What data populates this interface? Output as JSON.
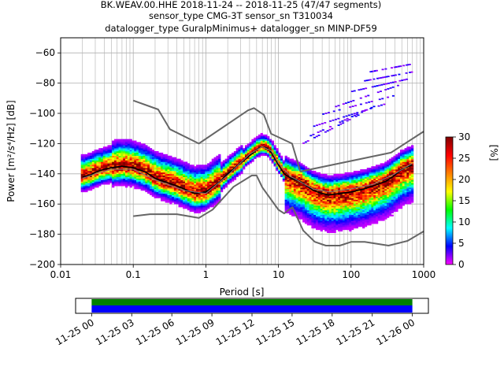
{
  "title": {
    "line1": "BK.WEAV.00.HHE   2018-11-24 -- 2018-11-25  (47/47 segments)",
    "line2": "sensor_type CMG-3T sensor_sn T310034",
    "line3": "datalogger_type GuralpMinimus+ datalogger_sn MINP-DF59"
  },
  "chart_data": [
    {
      "type": "heatmap",
      "xlabel": "Period [s]",
      "ylabel": "Power [m²/s⁴/Hz] [dB]",
      "xscale": "log",
      "xlim": [
        0.01,
        1000
      ],
      "ylim": [
        -200,
        -50
      ],
      "xtick_labels": [
        "0.01",
        "0.1",
        "1",
        "10",
        "100",
        "1000"
      ],
      "xtick_values": [
        0.01,
        0.1,
        1,
        10,
        100,
        1000
      ],
      "ytick_values": [
        -200,
        -180,
        -160,
        -140,
        -120,
        -100,
        -80,
        -60
      ],
      "ytick_labels": [
        "−200",
        "−180",
        "−160",
        "−140",
        "−120",
        "−100",
        "−80",
        "−60"
      ],
      "grid": true,
      "colorbar": {
        "label": "[%]",
        "range": [
          0,
          30
        ],
        "ticks": [
          "0",
          "5",
          "10",
          "15",
          "20",
          "25",
          "30"
        ],
        "colors": [
          "#ffffff",
          "#ff00ff",
          "#0000ff",
          "#00ffff",
          "#00ff00",
          "#ffff00",
          "#ff7f00",
          "#ff0000",
          "#7f0000"
        ]
      },
      "series": [
        {
          "role": "nhnm",
          "color": "#666666",
          "x": [
            0.1,
            0.22,
            0.32,
            0.8,
            3.8,
            4.6,
            6.3,
            7.9,
            15.4,
            20,
            354.8,
            1000
          ],
          "y": [
            -91.5,
            -97.4,
            -110.5,
            -120,
            -98,
            -96.5,
            -101,
            -113.5,
            -120,
            -138.5,
            -126,
            -112
          ]
        },
        {
          "role": "nlnm",
          "color": "#666666",
          "x": [
            0.1,
            0.17,
            0.4,
            0.8,
            1.24,
            2.4,
            4.3,
            5,
            6,
            10,
            12,
            15.6,
            21.9,
            31.6,
            45,
            70,
            101,
            154,
            328,
            600,
            1000
          ],
          "y": [
            -168,
            -166.7,
            -166.7,
            -169.2,
            -163.7,
            -148.6,
            -141.1,
            -141.1,
            -149,
            -163.8,
            -166.2,
            -162.1,
            -177.5,
            -185,
            -187.5,
            -187.5,
            -185,
            -185,
            -187.5,
            -184.4,
            -178
          ]
        },
        {
          "role": "mode",
          "color": "#000000",
          "x": [
            0.02,
            0.025,
            0.03,
            0.04,
            0.05,
            0.07,
            0.1,
            0.15,
            0.2,
            0.3,
            0.4,
            0.5,
            0.7,
            1,
            1.5,
            2,
            3,
            4,
            5,
            6,
            7,
            8,
            10,
            12,
            15,
            20,
            30,
            40,
            50,
            70,
            100,
            150,
            200,
            300,
            400,
            500,
            700
          ],
          "y": [
            -142,
            -141,
            -139,
            -137,
            -136,
            -135,
            -136,
            -139,
            -143,
            -146,
            -148,
            -150,
            -153,
            -152,
            -146,
            -140,
            -133,
            -128,
            -124,
            -122,
            -123,
            -126,
            -134,
            -140,
            -143,
            -145,
            -151,
            -153,
            -154,
            -153,
            -152,
            -150,
            -148,
            -145,
            -141,
            -137,
            -134
          ]
        },
        {
          "role": "mean",
          "color": "#7f7f7f",
          "x": [
            0.02,
            0.03,
            0.05,
            0.1,
            0.2,
            0.5,
            1,
            2,
            4,
            6,
            8,
            10,
            15,
            30,
            50,
            100,
            200,
            400,
            700
          ],
          "y": [
            -143,
            -140,
            -137,
            -137,
            -144,
            -151,
            -153,
            -141,
            -127,
            -122,
            -125,
            -133,
            -142,
            -150,
            -152,
            -150,
            -147,
            -140,
            -133
          ]
        }
      ]
    },
    {
      "type": "timeline",
      "xtick_labels": [
        "11-25 00",
        "11-25 03",
        "11-25 06",
        "11-25 09",
        "11-25 12",
        "11-25 15",
        "11-25 18",
        "11-25 21",
        "11-26 00"
      ],
      "xtick_hours": [
        0,
        3,
        6,
        9,
        12,
        15,
        18,
        21,
        24
      ],
      "xlim_hours": [
        -1.2,
        25.2
      ],
      "bars": [
        {
          "role": "data",
          "color": "#008000",
          "start_hour": 0,
          "end_hour": 24.0
        },
        {
          "role": "used",
          "color": "#0000ff",
          "start_hour": 0,
          "end_hour": 24.0
        }
      ]
    }
  ]
}
